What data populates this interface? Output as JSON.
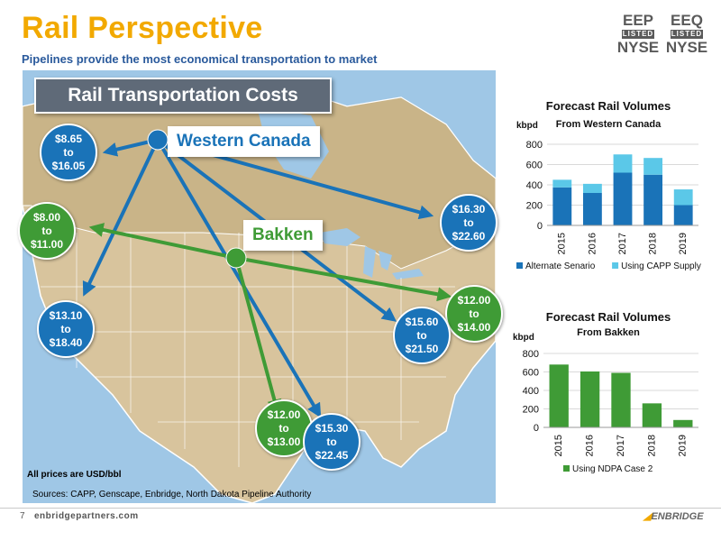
{
  "header": {
    "title": "Rail Perspective",
    "subtitle": "Pipelines provide the most economical transportation to market"
  },
  "badges": [
    {
      "ticker": "EEP",
      "listed": "LISTED",
      "exchange": "NYSE"
    },
    {
      "ticker": "EEQ",
      "listed": "LISTED",
      "exchange": "NYSE"
    }
  ],
  "map": {
    "banner": "Rail Transportation Costs",
    "origins": {
      "western_canada": "Western Canada",
      "bakken": "Bakken"
    },
    "prices": [
      {
        "line1": "$8.65",
        "line2": "to",
        "line3": "$16.05",
        "color": "blue"
      },
      {
        "line1": "$8.00",
        "line2": "to",
        "line3": "$11.00",
        "color": "green"
      },
      {
        "line1": "$13.10",
        "line2": "to",
        "line3": "$18.40",
        "color": "blue"
      },
      {
        "line1": "$16.30",
        "line2": "to",
        "line3": "$22.60",
        "color": "blue"
      },
      {
        "line1": "$12.00",
        "line2": "to",
        "line3": "$14.00",
        "color": "green"
      },
      {
        "line1": "$15.60",
        "line2": "to",
        "line3": "$21.50",
        "color": "blue"
      },
      {
        "line1": "$12.00",
        "line2": "to",
        "line3": "$13.00",
        "color": "green"
      },
      {
        "line1": "$15.30",
        "line2": "to",
        "line3": "$22.45",
        "color": "blue"
      }
    ]
  },
  "colors": {
    "accent": "#f2a900",
    "blue": "#1a73b8",
    "green": "#3f9b36",
    "light_blue": "#5bc8e8"
  },
  "note": "All prices are USD/bbl",
  "sources": "Sources: CAPP, Genscape, Enbridge, North Dakota Pipeline Authority",
  "footer": {
    "page": "7",
    "url": "enbridgepartners.com",
    "logo": "ENBRIDGE"
  },
  "chart_data": [
    {
      "type": "bar",
      "stacked": true,
      "title": "Forecast Rail Volumes",
      "subtitle": "From Western Canada",
      "ylabel": "kbpd",
      "categories": [
        "2015",
        "2016",
        "2017",
        "2018",
        "2019"
      ],
      "series": [
        {
          "name": "Alternate Senario",
          "values": [
            375,
            320,
            520,
            500,
            200
          ]
        },
        {
          "name": "Using CAPP Supply",
          "values": [
            75,
            90,
            180,
            165,
            155
          ]
        }
      ],
      "ylim": [
        0,
        800
      ],
      "yticks": [
        0,
        200,
        400,
        600,
        800
      ],
      "legend": "bottom"
    },
    {
      "type": "bar",
      "title": "Forecast Rail Volumes",
      "subtitle": "From Bakken",
      "ylabel": "kbpd",
      "categories": [
        "2015",
        "2016",
        "2017",
        "2018",
        "2019"
      ],
      "series": [
        {
          "name": "Using NDPA Case 2",
          "values": [
            680,
            605,
            590,
            260,
            80
          ]
        }
      ],
      "ylim": [
        0,
        800
      ],
      "yticks": [
        0,
        200,
        400,
        600,
        800
      ],
      "legend": "bottom"
    }
  ]
}
